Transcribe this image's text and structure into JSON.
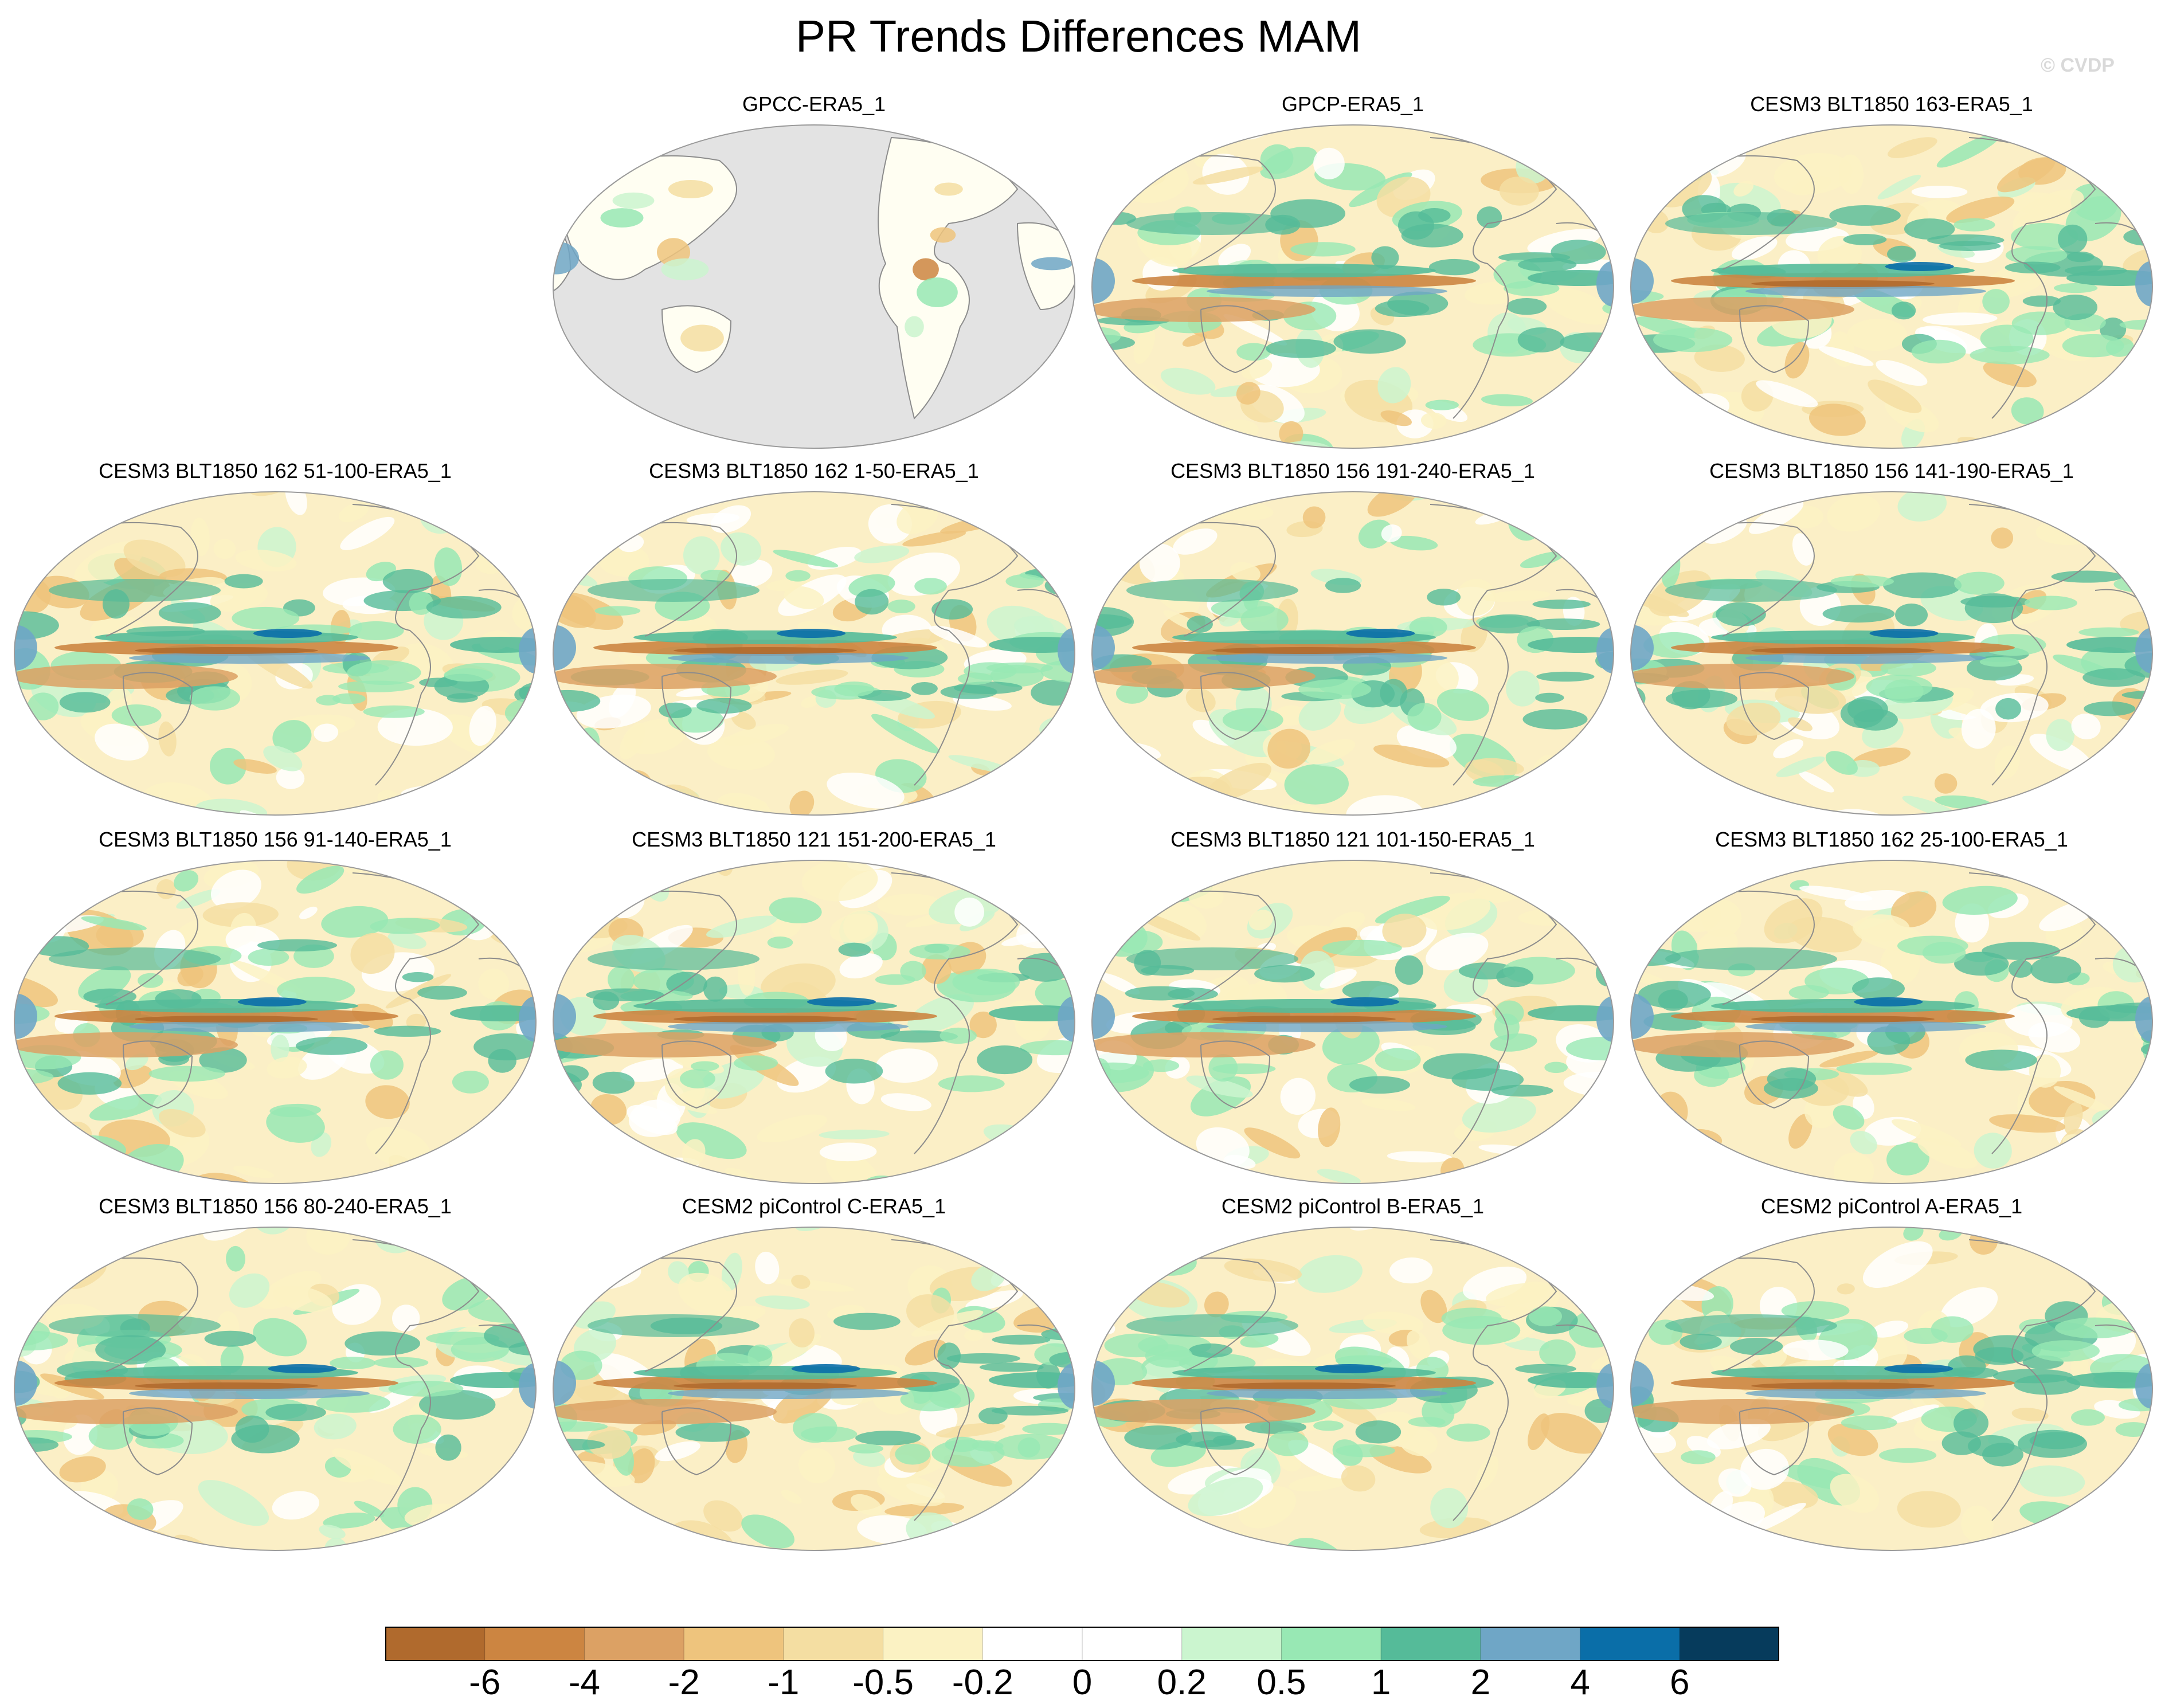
{
  "title": "PR Trends Differences MAM",
  "watermark": "© CVDP",
  "colors": {
    "ocean_gray": "#e3e3e3",
    "coast": "#8c8c8c",
    "bins": [
      "#b06a2d",
      "#cc8541",
      "#dca164",
      "#eec47d",
      "#f4dea2",
      "#fbf2c3",
      "#ffffff",
      "#ffffff",
      "#cbf5cf",
      "#98e8b4",
      "#55bb99",
      "#6fa6c6",
      "#0a6ea8",
      "#063b5c"
    ]
  },
  "colorbar": {
    "labels": [
      "-6",
      "-4",
      "-2",
      "-1",
      "-0.5",
      "-0.2",
      "0",
      "0.2",
      "0.5",
      "1",
      "2",
      "4",
      "6"
    ]
  },
  "panels": [
    {
      "title": "GPCC-ERA5_1",
      "variant": "land"
    },
    {
      "title": "GPCP-ERA5_1",
      "variant": "gpcp"
    },
    {
      "title": "CESM3 BLT1850 163-ERA5_1",
      "variant": "model"
    },
    {
      "title": "CESM3 BLT1850 162 51-100-ERA5_1",
      "variant": "model"
    },
    {
      "title": "CESM3 BLT1850 162 1-50-ERA5_1",
      "variant": "model"
    },
    {
      "title": "CESM3 BLT1850 156 191-240-ERA5_1",
      "variant": "model"
    },
    {
      "title": "CESM3 BLT1850 156 141-190-ERA5_1",
      "variant": "model"
    },
    {
      "title": "CESM3 BLT1850 156 91-140-ERA5_1",
      "variant": "model"
    },
    {
      "title": "CESM3 BLT1850 121 151-200-ERA5_1",
      "variant": "model"
    },
    {
      "title": "CESM3 BLT1850 121 101-150-ERA5_1",
      "variant": "model"
    },
    {
      "title": "CESM3 BLT1850 162 25-100-ERA5_1",
      "variant": "model"
    },
    {
      "title": "CESM3 BLT1850 156 80-240-ERA5_1",
      "variant": "model"
    },
    {
      "title": "CESM2 piControl C-ERA5_1",
      "variant": "model"
    },
    {
      "title": "CESM2 piControl B-ERA5_1",
      "variant": "model"
    },
    {
      "title": "CESM2 piControl A-ERA5_1",
      "variant": "model"
    }
  ],
  "chart_data": {
    "type": "heatmap",
    "title": "PR Trends Differences MAM",
    "map_projection": "Robinson, Pacific-centered",
    "legend": "horizontal colorbar at bottom",
    "colorbar_levels": [
      -6,
      -4,
      -2,
      -1,
      -0.5,
      -0.2,
      0,
      0.2,
      0.5,
      1,
      2,
      4,
      6
    ],
    "panels": [
      "GPCC-ERA5_1",
      "GPCP-ERA5_1",
      "CESM3 BLT1850 163-ERA5_1",
      "CESM3 BLT1850 162 51-100-ERA5_1",
      "CESM3 BLT1850 162 1-50-ERA5_1",
      "CESM3 BLT1850 156 191-240-ERA5_1",
      "CESM3 BLT1850 156 141-190-ERA5_1",
      "CESM3 BLT1850 156 91-140-ERA5_1",
      "CESM3 BLT1850 121 151-200-ERA5_1",
      "CESM3 BLT1850 121 101-150-ERA5_1",
      "CESM3 BLT1850 162 25-100-ERA5_1",
      "CESM3 BLT1850 156 80-240-ERA5_1",
      "CESM2 piControl C-ERA5_1",
      "CESM2 piControl B-ERA5_1",
      "CESM2 piControl A-ERA5_1"
    ]
  }
}
